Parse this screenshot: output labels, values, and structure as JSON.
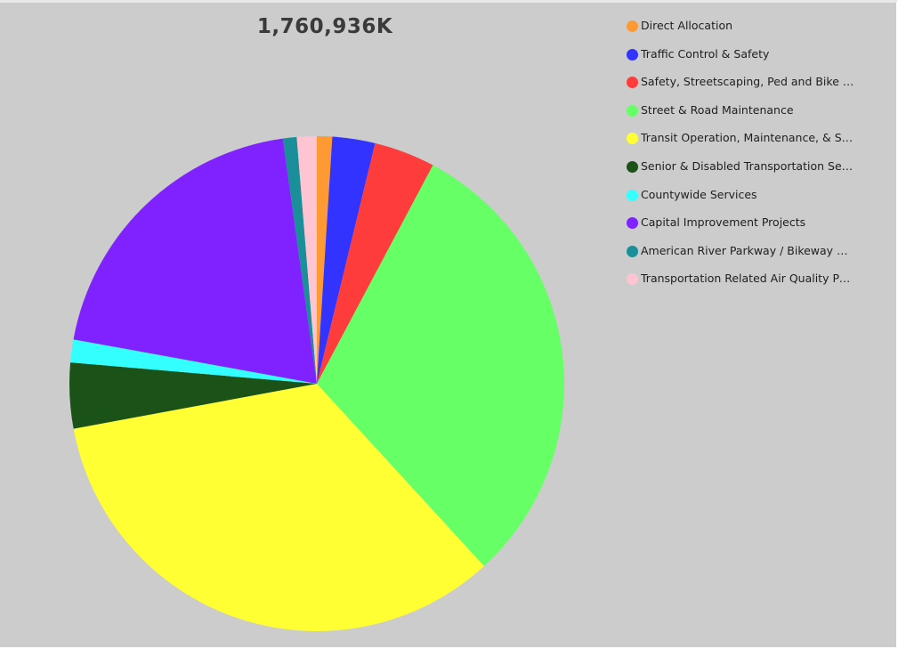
{
  "chart_data": {
    "type": "pie",
    "title": "1,760,936K",
    "legend_position": "right",
    "categories": [
      "Direct Allocation",
      "Traffic Control & Safety",
      "Safety, Streetscaping, Ped and Bike F...",
      "Street & Road Maintenance",
      "Transit Operation, Maintenance, & Saf...",
      "Senior & Disabled Transportation Ser...",
      "Countywide Services",
      "Capital Improvement Projects",
      "American River Parkway / Bikeway N...",
      "Transportation Related Air Quality Pro..."
    ],
    "values": [
      1.0,
      2.8,
      4.0,
      30.5,
      34.0,
      4.3,
      1.5,
      20.0,
      0.9,
      1.3
    ],
    "colors": [
      "#ff9933",
      "#3333ff",
      "#ff3c3c",
      "#66ff66",
      "#ffff33",
      "#1a5218",
      "#33ffff",
      "#7f22ff",
      "#1a8f99",
      "#ffc4d2"
    ],
    "start_angle_deg": 0,
    "direction": "clockwise"
  }
}
